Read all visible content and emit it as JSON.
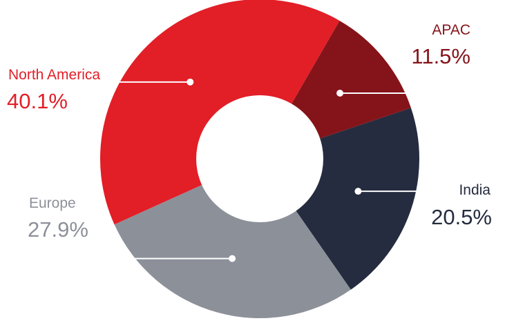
{
  "chart_data": {
    "type": "pie",
    "title": "",
    "donut": true,
    "slices": [
      {
        "label": "APAC",
        "value": 11.5,
        "value_label": "11.5%",
        "color": "#85141a"
      },
      {
        "label": "India",
        "value": 20.5,
        "value_label": "20.5%",
        "color": "#252c3f"
      },
      {
        "label": "Europe",
        "value": 27.9,
        "value_label": "27.9%",
        "color": "#8c9099"
      },
      {
        "label": "North America",
        "value": 40.1,
        "value_label": "40.1%",
        "color": "#e21e27"
      }
    ],
    "legend": "none"
  }
}
